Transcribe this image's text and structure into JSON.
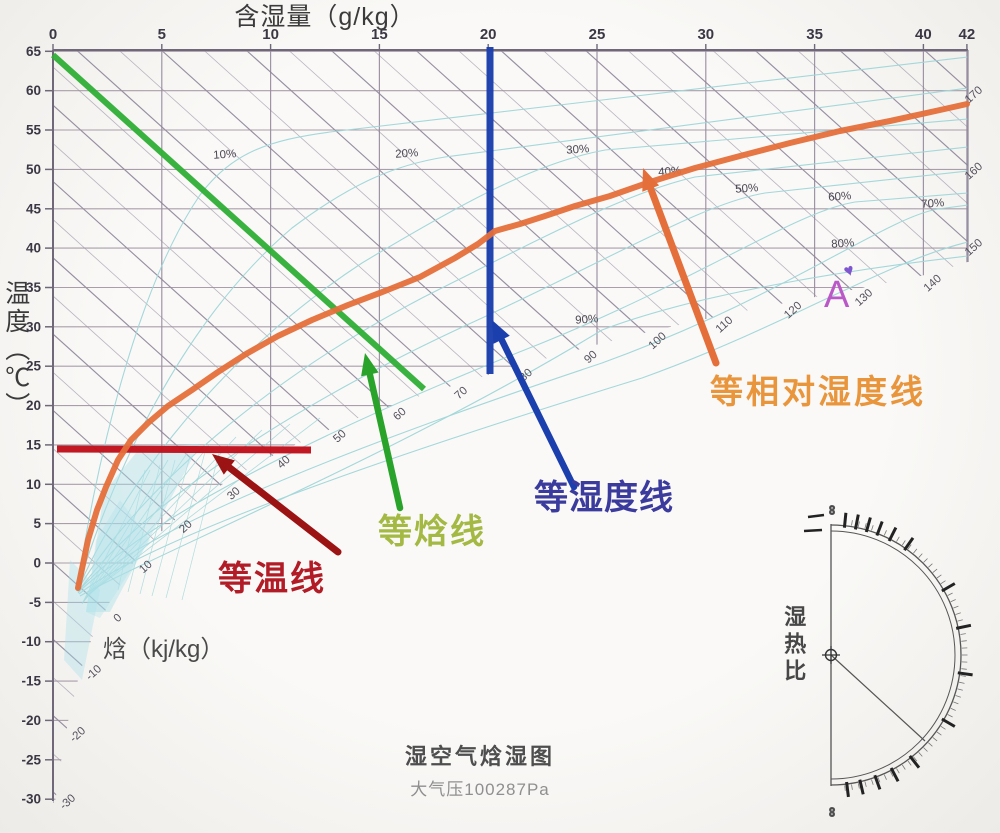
{
  "labels": {
    "moisture_axis": "含湿量（g/kg）",
    "temp_axis": "温度（℃）",
    "enthalpy_axis": "焓（kj/kg）"
  },
  "annotations": {
    "isotherm": "等温线",
    "iso_enthalpy": "等焓线",
    "iso_humidity": "等湿度线",
    "iso_relative_humidity": "等相对湿度线",
    "point_label": "A",
    "point_marker_icon": "♥",
    "heat_moisture_ratio": "湿热比"
  },
  "footer": {
    "chart_title": "湿空气焓湿图",
    "pressure": "大气压100287Pa"
  },
  "colors": {
    "isotherm_line": "#c0111c",
    "isotherm_arrow": "#9c1313",
    "iso_enthalpy_line": "#2fae36",
    "iso_enthalpy_arrow": "#2aa32a",
    "iso_humidity_line": "#1c3fae",
    "iso_rh_line": "#e56f3a",
    "grid_diagonal": "#877d93",
    "grid_main": "#8d8398",
    "rh_curve": "#9fd6d8",
    "fan_fill": "#a8dfe8",
    "axis": "#6f6878",
    "text_dark": "#3c3744",
    "text_mid": "#55505c",
    "percent_text": "#4a4550",
    "protractor": "#4a4a4a"
  },
  "chart_data": {
    "type": "line",
    "title": "湿空气焓湿图",
    "pressure": "大气压100287Pa",
    "x_axis": {
      "label": "含湿量（g/kg）",
      "ticks": [
        0,
        5,
        10,
        15,
        20,
        25,
        30,
        35,
        40,
        42
      ],
      "range": [
        0,
        42
      ]
    },
    "y_axis": {
      "label": "温度（℃）",
      "ticks": [
        65,
        60,
        55,
        50,
        45,
        40,
        35,
        30,
        25,
        20,
        15,
        10,
        5,
        0,
        -5,
        -10,
        -15,
        -20,
        -25,
        -30
      ],
      "range": [
        -30,
        65
      ]
    },
    "enthalpy_axis": {
      "label": "焓（kj/kg）",
      "line_labels": [
        -30,
        -20,
        -10,
        0,
        10,
        20,
        30,
        40,
        50,
        60,
        70,
        80,
        90,
        100,
        110,
        120,
        130,
        140,
        150,
        160,
        170
      ]
    },
    "rh_labels": [
      "10%",
      "20%",
      "30%",
      "40%",
      "50%",
      "60%",
      "70%",
      "80%",
      "90%"
    ],
    "series": [
      {
        "name": "等温线",
        "type": "isotherm",
        "value": "15 ℃",
        "color": "#c0111c"
      },
      {
        "name": "等焓线",
        "type": "iso-enthalpy",
        "from": {
          "t": 65,
          "d": 0
        },
        "to": {
          "t": 22,
          "d": 17
        },
        "color": "#2fae36"
      },
      {
        "name": "等湿度线",
        "type": "iso-moisture",
        "value": "20 g/kg",
        "color": "#1c3fae"
      },
      {
        "name": "等相对湿度线",
        "type": "iso-relative-humidity",
        "color": "#e56f3a"
      }
    ],
    "marked_point": {
      "label": "A"
    },
    "protractor": {
      "label": "湿热比",
      "ends": [
        "∞",
        "∞"
      ]
    }
  }
}
